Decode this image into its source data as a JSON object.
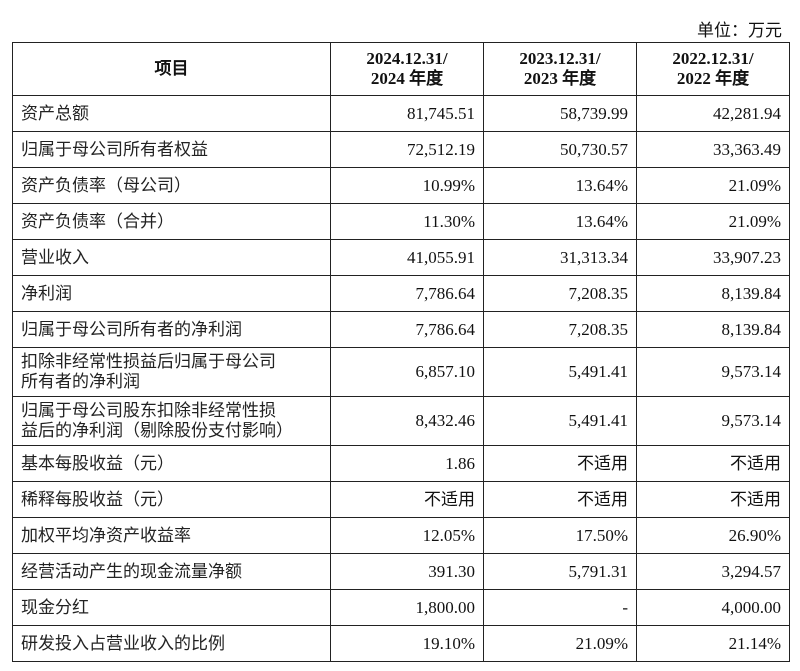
{
  "header": {
    "unit": "单位：万元"
  },
  "table": {
    "columns": [
      [
        "项目"
      ],
      [
        "2024.12.31/",
        "2024 年度"
      ],
      [
        "2023.12.31/",
        "2023 年度"
      ],
      [
        "2022.12.31/",
        "2022 年度"
      ]
    ],
    "rows": [
      [
        [
          "资产总额"
        ],
        "81,745.51",
        "58,739.99",
        "42,281.94"
      ],
      [
        [
          "归属于母公司所有者权益"
        ],
        "72,512.19",
        "50,730.57",
        "33,363.49"
      ],
      [
        [
          "资产负债率（母公司）"
        ],
        "10.99%",
        "13.64%",
        "21.09%"
      ],
      [
        [
          "资产负债率（合并）"
        ],
        "11.30%",
        "13.64%",
        "21.09%"
      ],
      [
        [
          "营业收入"
        ],
        "41,055.91",
        "31,313.34",
        "33,907.23"
      ],
      [
        [
          "净利润"
        ],
        "7,786.64",
        "7,208.35",
        "8,139.84"
      ],
      [
        [
          "归属于母公司所有者的净利润"
        ],
        "7,786.64",
        "7,208.35",
        "8,139.84"
      ],
      [
        [
          "扣除非经常性损益后归属于母公司",
          "所有者的净利润"
        ],
        "6,857.10",
        "5,491.41",
        "9,573.14"
      ],
      [
        [
          "归属于母公司股东扣除非经常性损",
          "益后的净利润（剔除股份支付影响）"
        ],
        "8,432.46",
        "5,491.41",
        "9,573.14"
      ],
      [
        [
          "基本每股收益（元）"
        ],
        "1.86",
        "不适用",
        "不适用"
      ],
      [
        [
          "稀释每股收益（元）"
        ],
        "不适用",
        "不适用",
        "不适用"
      ],
      [
        [
          "加权平均净资产收益率"
        ],
        "12.05%",
        "17.50%",
        "26.90%"
      ],
      [
        [
          "经营活动产生的现金流量净额"
        ],
        "391.30",
        "5,791.31",
        "3,294.57"
      ],
      [
        [
          "现金分红"
        ],
        "1,800.00",
        "-",
        "4,000.00"
      ],
      [
        [
          "研发投入占营业收入的比例"
        ],
        "19.10%",
        "21.09%",
        "21.14%"
      ]
    ]
  }
}
